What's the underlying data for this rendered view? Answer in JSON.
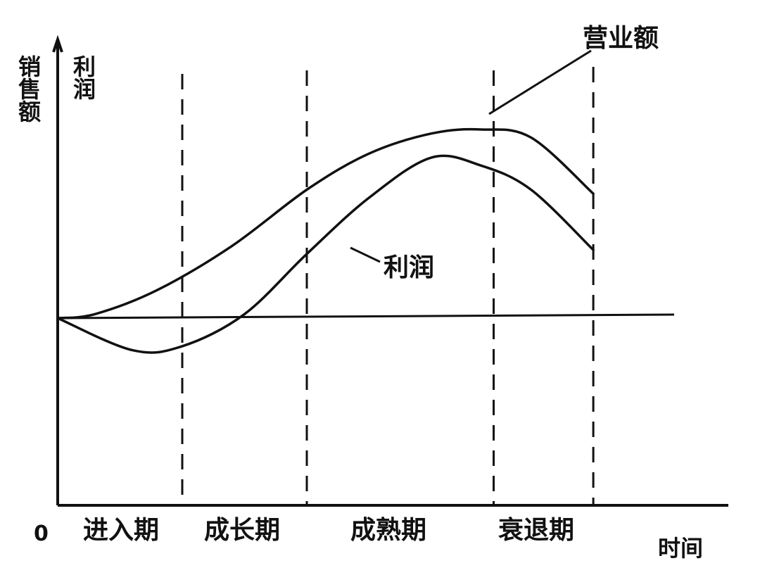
{
  "chart_data": {
    "type": "line",
    "title": "",
    "y_axis_label_left": "销售额",
    "y_axis_label_right": "利润",
    "x_axis_label": "时间",
    "origin_label": "0",
    "stages": [
      "进入期",
      "成长期",
      "成熟期",
      "衰退期"
    ],
    "series": [
      {
        "name": "营业额",
        "x": [
          0,
          0.3,
          0.8,
          1.4,
          2.0,
          2.5,
          3.0,
          3.4,
          3.8,
          4.3
        ],
        "y": [
          0,
          0.05,
          0.35,
          0.9,
          1.6,
          2.05,
          2.3,
          2.35,
          2.25,
          1.55
        ]
      },
      {
        "name": "利润",
        "x": [
          0,
          0.6,
          1.0,
          1.5,
          2.0,
          2.5,
          3.0,
          3.4,
          3.8,
          4.3
        ],
        "y": [
          0,
          -0.4,
          -0.35,
          0.05,
          0.8,
          1.5,
          2.0,
          1.9,
          1.6,
          0.85
        ]
      }
    ],
    "stage_boundaries": [
      1,
      2,
      3.5,
      4.3
    ],
    "xlim": [
      0,
      5
    ],
    "ylim": [
      -1,
      3
    ],
    "grid": false,
    "legend": "inline labels"
  }
}
